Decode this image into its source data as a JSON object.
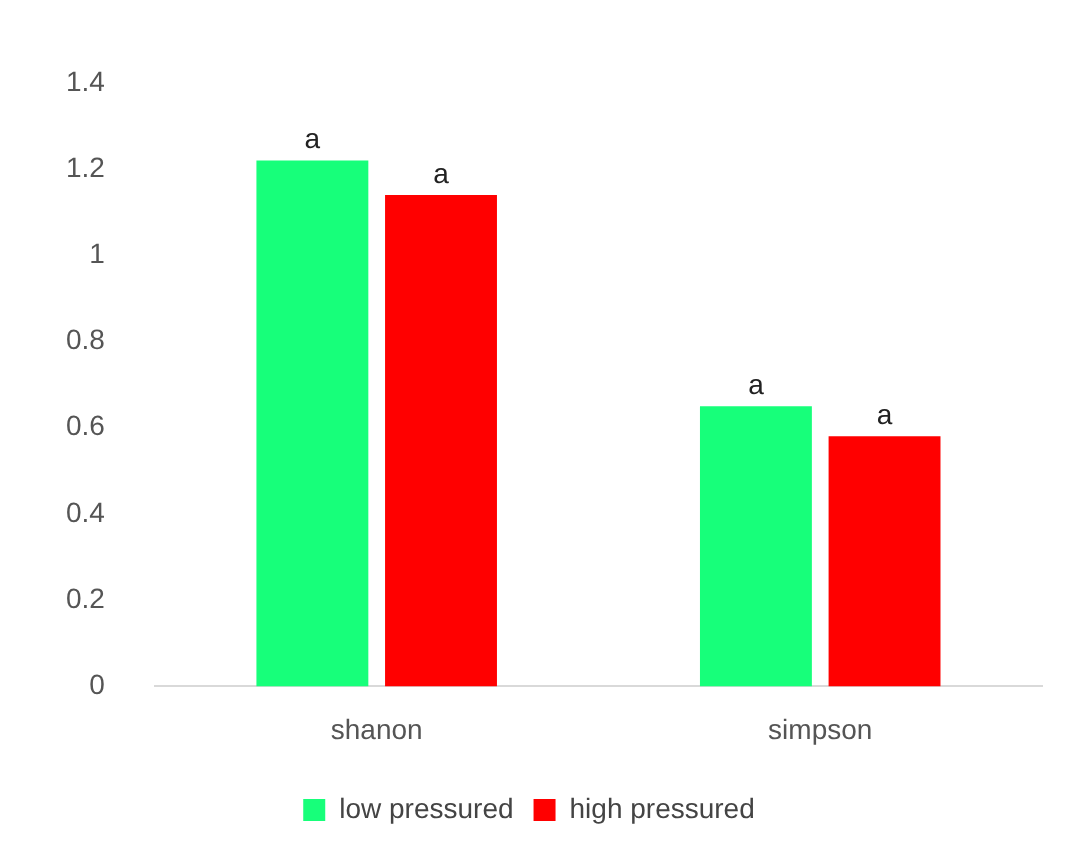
{
  "chart_data": {
    "type": "bar",
    "categories": [
      "shanon",
      "simpson"
    ],
    "series": [
      {
        "name": "low pressured",
        "color": "#17ff7a",
        "values": [
          1.22,
          0.65
        ]
      },
      {
        "name": "high pressured",
        "color": "#ff0000",
        "values": [
          1.14,
          0.58
        ]
      }
    ],
    "ylim": [
      0,
      1.4
    ],
    "yticks": [
      0,
      0.2,
      0.4,
      0.6,
      0.8,
      1,
      1.2,
      1.4
    ],
    "grid": false,
    "legend": "bottom",
    "annotations": [
      {
        "text": "a",
        "x": "shanon",
        "y": 1.22
      },
      {
        "text": "a",
        "x": "shanon",
        "y": 1.14
      },
      {
        "text": "a",
        "x": "simpson",
        "y": 0.65
      },
      {
        "text": "a",
        "x": "simpson",
        "y": 0.58
      }
    ]
  }
}
